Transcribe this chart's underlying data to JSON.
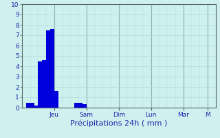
{
  "title": "Précipitations 24h ( mm )",
  "background_color": "#cef0ee",
  "bar_color": "#0000dd",
  "grid_color_minor": "#aadddd",
  "grid_color_major": "#88aaaa",
  "axis_color": "#556666",
  "text_color": "#2222aa",
  "ylim": [
    0,
    10
  ],
  "yticks": [
    0,
    1,
    2,
    3,
    4,
    5,
    6,
    7,
    8,
    9,
    10
  ],
  "bar_values": [
    0,
    0.45,
    0.45,
    0.2,
    4.5,
    4.6,
    7.5,
    7.6,
    1.6,
    0,
    0,
    0,
    0,
    0.5,
    0.5,
    0.35,
    0,
    0,
    0,
    0,
    0,
    0,
    0,
    0,
    0,
    0,
    0,
    0,
    0,
    0,
    0,
    0,
    0,
    0,
    0,
    0,
    0,
    0,
    0,
    0,
    0,
    0,
    0,
    0,
    0,
    0,
    0,
    0
  ],
  "n_bars": 48,
  "day_labels": [
    "Jeu",
    "Sam",
    "Dim",
    "Lun",
    "Mar",
    "M"
  ],
  "day_tick_positions": [
    8,
    16,
    24,
    32,
    40,
    46
  ],
  "xlabel_fontsize": 8,
  "tick_fontsize": 6.5,
  "figsize": [
    3.2,
    2.0
  ],
  "dpi": 100
}
